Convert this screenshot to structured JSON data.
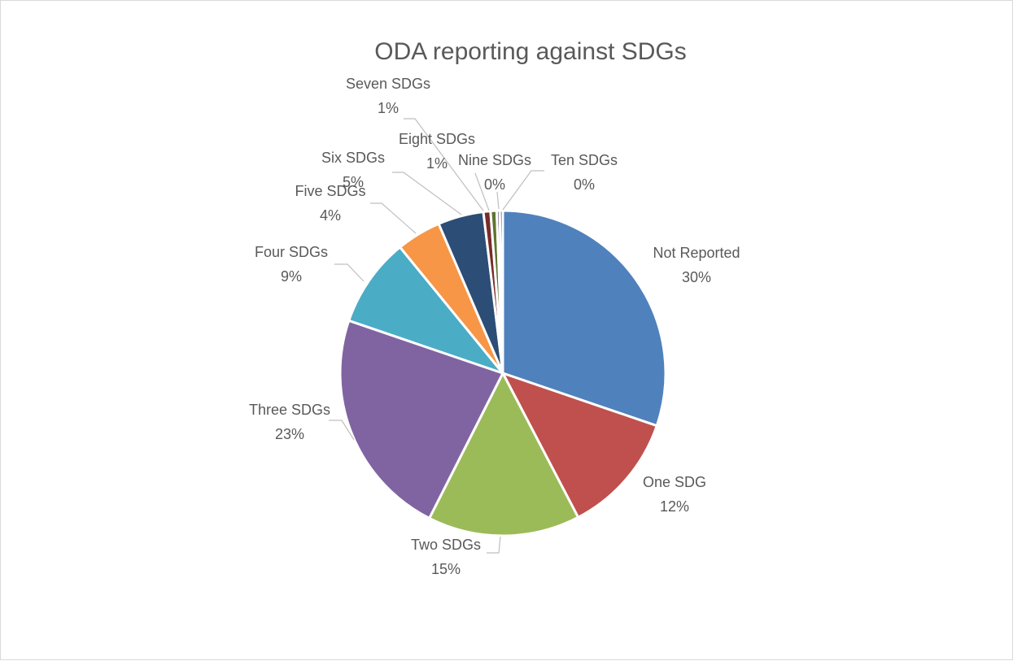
{
  "chart_data": {
    "type": "pie",
    "title": "ODA reporting against SDGs",
    "slices": [
      {
        "label": "Not Reported",
        "value": 30.0,
        "display": "30%",
        "color": "#4f81bd"
      },
      {
        "label": "One SDG",
        "value": 12.0,
        "display": "12%",
        "color": "#c0504d"
      },
      {
        "label": "Two SDGs",
        "value": 15.0,
        "display": "15%",
        "color": "#9bbb59"
      },
      {
        "label": "Three SDGs",
        "value": 22.6,
        "display": "23%",
        "color": "#8064a2"
      },
      {
        "label": "Four SDGs",
        "value": 8.8,
        "display": "9%",
        "color": "#4bacc6"
      },
      {
        "label": "Five SDGs",
        "value": 4.4,
        "display": "4%",
        "color": "#f79646"
      },
      {
        "label": "Six SDGs",
        "value": 4.5,
        "display": "5%",
        "color": "#2c4d75"
      },
      {
        "label": "Seven SDGs",
        "value": 0.7,
        "display": "1%",
        "color": "#772c2a"
      },
      {
        "label": "Eight SDGs",
        "value": 0.6,
        "display": "1%",
        "color": "#5f7530"
      },
      {
        "label": "Nine SDGs",
        "value": 0.3,
        "display": "0%",
        "color": "#4d3b62"
      },
      {
        "label": "Ten SDGs",
        "value": 0.3,
        "display": "0%",
        "color": "#276a7c"
      }
    ],
    "legend": "none",
    "data_labels": "category name and percentage"
  }
}
